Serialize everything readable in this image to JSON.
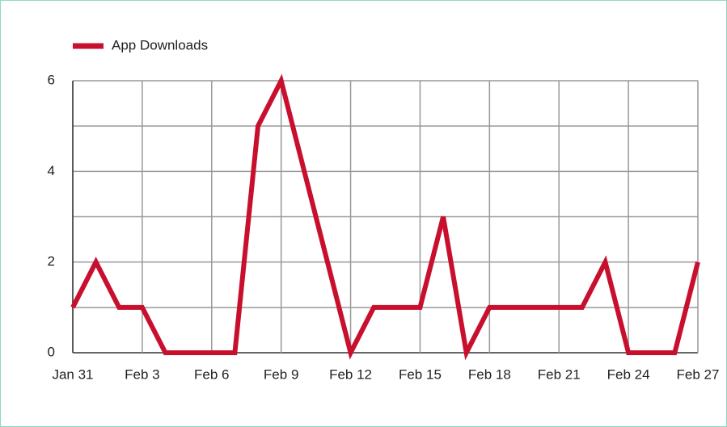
{
  "chart_data": {
    "type": "line",
    "categories": [
      "Jan 31",
      null,
      null,
      "Feb 3",
      null,
      null,
      "Feb 6",
      null,
      null,
      "Feb 9",
      null,
      null,
      "Feb 12",
      null,
      null,
      "Feb 15",
      null,
      null,
      "Feb 18",
      null,
      null,
      "Feb 21",
      null,
      null,
      "Feb 24",
      null,
      null,
      "Feb 27"
    ],
    "series": [
      {
        "name": "App Downloads",
        "color": "#c8102e",
        "values": [
          1,
          2,
          1,
          1,
          0,
          0,
          0,
          0,
          5,
          6,
          4,
          2,
          0,
          1,
          1,
          1,
          3,
          0,
          1,
          1,
          1,
          1,
          1,
          2,
          0,
          0,
          0,
          2
        ]
      }
    ],
    "ylim": [
      0,
      6
    ],
    "yticks": [
      0,
      2,
      4,
      6
    ],
    "minor_yticks": [
      1,
      3,
      5
    ],
    "grid": true,
    "legend": "top-left"
  }
}
